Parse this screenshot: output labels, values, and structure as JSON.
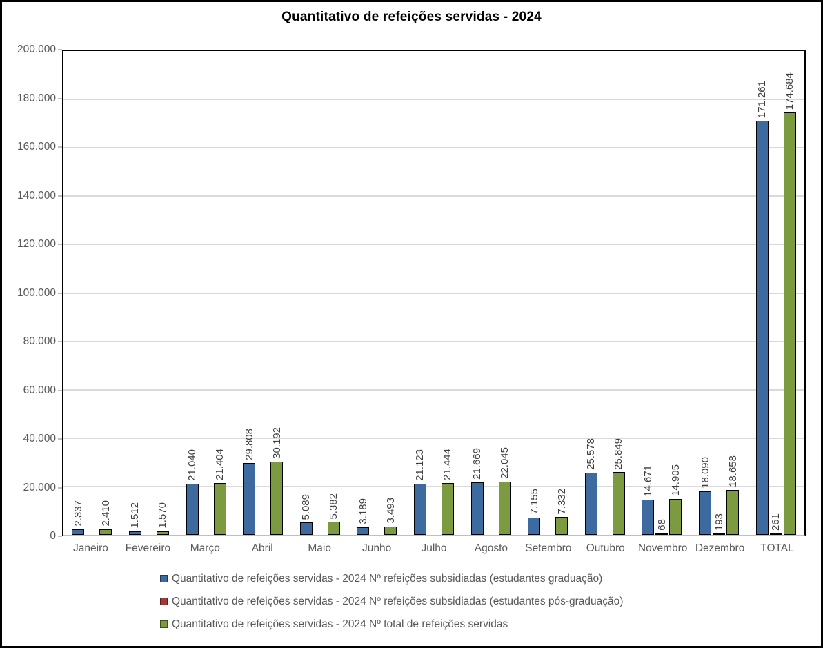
{
  "title": "Quantitativo de refeições servidas - 2024",
  "chart_data": {
    "type": "bar",
    "title": "Quantitativo de refeições servidas - 2024",
    "xlabel": "",
    "ylabel": "",
    "ylim": [
      0,
      200000
    ],
    "ytick_step": 20000,
    "ytick_labels": [
      "0",
      "20.000",
      "40.000",
      "60.000",
      "80.000",
      "100.000",
      "120.000",
      "140.000",
      "160.000",
      "180.000",
      "200.000"
    ],
    "grid": true,
    "legend_position": "bottom-left",
    "value_label_rotation": "vertical",
    "categories": [
      "Janeiro",
      "Fevereiro",
      "Março",
      "Abril",
      "Maio",
      "Junho",
      "Julho",
      "Agosto",
      "Setembro",
      "Outubro",
      "Novembro",
      "Dezembro",
      "TOTAL"
    ],
    "series": [
      {
        "key": "graduacao",
        "name": "Quantitativo de refeições servidas - 2024 Nº refeições subsidiadas (estudantes graduação)",
        "color": "#3d6a9f",
        "marker_border": "#1f3864",
        "values": [
          2337,
          1512,
          21040,
          29808,
          5089,
          3189,
          21123,
          21669,
          7155,
          25578,
          14671,
          18090,
          171261
        ],
        "labels": [
          "2.337",
          "1.512",
          "21.040",
          "29.808",
          "5.089",
          "3.189",
          "21.123",
          "21.669",
          "7.155",
          "25.578",
          "14.671",
          "18.090",
          "171.261"
        ]
      },
      {
        "key": "pos-graduacao",
        "name": "Quantitativo de refeições servidas - 2024 Nº refeições subsidiadas (estudantes pós-graduação)",
        "color": "#9e3b38",
        "marker_border": "#591f1d",
        "values": [
          null,
          null,
          null,
          null,
          null,
          null,
          null,
          null,
          null,
          null,
          68,
          193,
          261
        ],
        "labels": [
          null,
          null,
          null,
          null,
          null,
          null,
          null,
          null,
          null,
          null,
          "68",
          "193",
          "261"
        ]
      },
      {
        "key": "total",
        "name": "Quantitativo de refeições servidas - 2024 Nº total de refeições servidas",
        "color": "#7c9b40",
        "marker_border": "#3f511b",
        "values": [
          2410,
          1570,
          21404,
          30192,
          5382,
          3493,
          21444,
          22045,
          7332,
          25849,
          14905,
          18658,
          174684
        ],
        "labels": [
          "2.410",
          "1.570",
          "21.404",
          "30.192",
          "5.382",
          "3.493",
          "21.444",
          "22.045",
          "7.332",
          "25.849",
          "14.905",
          "18.658",
          "174.684"
        ]
      }
    ]
  },
  "colors": {
    "background": "#ffffff",
    "outer_border": "#000000",
    "gridline": "#d9d9d9",
    "axis_line": "#bfbfbf",
    "axis_text": "#595959",
    "value_label_text": "#404040",
    "title_text": "#000000"
  }
}
